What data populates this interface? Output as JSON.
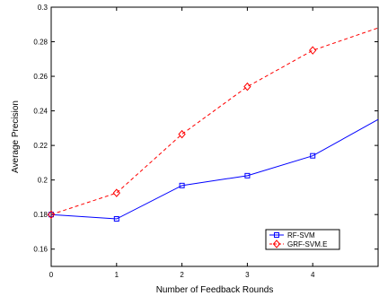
{
  "chart_data": {
    "type": "line",
    "title": "",
    "xlabel": "Number of Feedback Rounds",
    "ylabel": "Average Precision",
    "xlim": [
      0,
      5
    ],
    "ylim": [
      0.15,
      0.3
    ],
    "grid": false,
    "legend_position": "bottom-right",
    "x_ticks": [
      "0",
      "1",
      "2",
      "3",
      "4"
    ],
    "y_ticks": [
      "0.16",
      "0.18",
      "0.2",
      "0.22",
      "0.24",
      "0.26",
      "0.28",
      "0.3"
    ],
    "series": [
      {
        "name": "RF-SVM",
        "color": "#0000ff",
        "line_style": "solid",
        "marker": "square",
        "x": [
          0,
          1,
          2,
          3,
          4,
          5
        ],
        "y": [
          0.18,
          0.1775,
          0.1968,
          0.2025,
          0.214,
          0.235
        ]
      },
      {
        "name": "GRF-SVM.E",
        "color": "#ff0000",
        "line_style": "dashed",
        "marker": "diamond",
        "x": [
          0,
          1,
          2,
          3,
          4,
          5
        ],
        "y": [
          0.18,
          0.1925,
          0.2265,
          0.254,
          0.275,
          0.288
        ]
      }
    ]
  }
}
